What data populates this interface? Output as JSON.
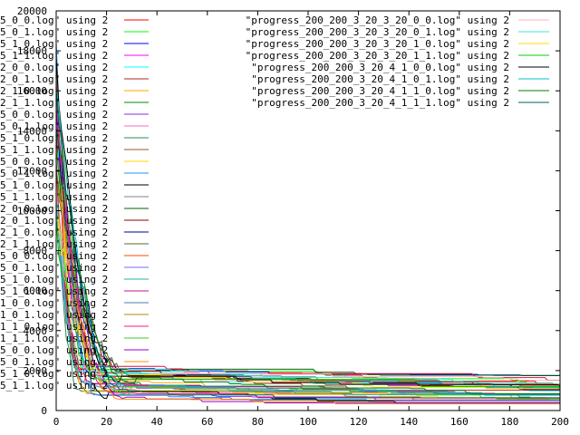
{
  "chart_data": {
    "type": "line",
    "title": "",
    "xlabel": "",
    "ylabel": "",
    "xlim": [
      0,
      200
    ],
    "ylim": [
      0,
      20000
    ],
    "grid": false,
    "x_ticks": [
      "0",
      "20",
      "40",
      "60",
      "80",
      "100",
      "120",
      "140",
      "160",
      "180",
      "200"
    ],
    "y_ticks": [
      "0",
      "2000",
      "4000",
      "6000",
      "8000",
      "10000",
      "12000",
      "14000",
      "16000",
      "18000",
      "20000"
    ],
    "legend_left": {
      "placement": "left, partially cut off",
      "entries": [
        {
          "label": "5_0_0.log\" using 2",
          "color": "#ff0000"
        },
        {
          "label": "5_0_1.log\" using 2",
          "color": "#00ff00"
        },
        {
          "label": "5_1_0.log\" using 2",
          "color": "#0000ff"
        },
        {
          "label": "5_1_1.log\" using 2",
          "color": "#ff00ff"
        },
        {
          "label": "2_0_0.log\" using 2",
          "color": "#00ffff"
        },
        {
          "label": "2_0_1.log\" using 2",
          "color": "#a52a2a"
        },
        {
          "label": "2_1_0.log\" using 2",
          "color": "#ffa500"
        },
        {
          "label": "2_1_1.log\" using 2",
          "color": "#008b00"
        },
        {
          "label": "5_0_0.log\" using 2",
          "color": "#8a2be2"
        },
        {
          "label": "5_0_1.log\" using 2",
          "color": "#ff69b4"
        },
        {
          "label": "5_1_0.log\" using 2",
          "color": "#2e8b57"
        },
        {
          "label": "5_1_1.log\" using 2",
          "color": "#a0522d"
        },
        {
          "label": "5_0_0.log\" using 2",
          "color": "#ffd700"
        },
        {
          "label": "5_0_1.log\" using 2",
          "color": "#1e90ff"
        },
        {
          "label": "5_1_0.log\" using 2",
          "color": "#000000"
        },
        {
          "label": "5_1_1.log\" using 2",
          "color": "#808080"
        },
        {
          "label": "2_0_0.log\" using 2",
          "color": "#006400"
        },
        {
          "label": "2_0_1.log\" using 2",
          "color": "#8b0000"
        },
        {
          "label": "2_1_0.log\" using 2",
          "color": "#00008b"
        },
        {
          "label": "2_1_1.log\" using 2",
          "color": "#556b2f"
        },
        {
          "label": "5_0_0.log\" using 2",
          "color": "#ff4500"
        },
        {
          "label": "5_0_1.log\" using 2",
          "color": "#7b68ee"
        },
        {
          "label": "5_1_0.log\" using 2",
          "color": "#20b2aa"
        },
        {
          "label": "5_1_1.log\" using 2",
          "color": "#c71585"
        },
        {
          "label": "1_0_0.log\" using 2",
          "color": "#4682b4"
        },
        {
          "label": "1_0_1.log\" using 2",
          "color": "#b8860b"
        },
        {
          "label": "1_1_0.log\" using 2",
          "color": "#ff1493"
        },
        {
          "label": "1_1_1.log\" using 2",
          "color": "#32cd32"
        },
        {
          "label": "5_0_0.log\" using 2",
          "color": "#9400d3"
        },
        {
          "label": "5_0_1.log\" using 2",
          "color": "#ff8c00"
        },
        {
          "label": "5_1_0.log\" using 2",
          "color": "#00ced1"
        },
        {
          "label": "5_1_1.log\" using 2",
          "color": "#dc143c"
        }
      ]
    },
    "legend_right": {
      "placement": "top-right",
      "entries": [
        {
          "label": "\"progress_200_200_3_20_3_20_0_0.log\" using 2",
          "color": "#ffb6c1"
        },
        {
          "label": "\"progress_200_200_3_20_3_20_0_1.log\" using 2",
          "color": "#40e0d0"
        },
        {
          "label": "\"progress_200_200_3_20_3_20_1_0.log\" using 2",
          "color": "#ffd700"
        },
        {
          "label": "\"progress_200_200_3_20_3_20_1_1.log\" using 2",
          "color": "#00cc00"
        },
        {
          "label": "\"progress_200_200_3_20_4_1_0_0.log\" using 2",
          "color": "#000000"
        },
        {
          "label": "\"progress_200_200_3_20_4_1_0_1.log\" using 2",
          "color": "#00c0c0"
        },
        {
          "label": "\"progress_200_200_3_20_4_1_1_0.log\" using 2",
          "color": "#008000"
        },
        {
          "label": "\"progress_200_200_3_20_4_1_1_1.log\" using 2",
          "color": "#006060"
        }
      ]
    },
    "series_pattern": {
      "description_note": "",
      "start_values": [
        19000,
        18000,
        17000,
        16000,
        15000,
        14500,
        14000,
        13000,
        12500,
        12000,
        11500,
        11000
      ],
      "plateau_values": [
        2000,
        1900,
        1800,
        1700,
        1600,
        1500,
        1400,
        1300,
        1200,
        1100,
        1000,
        900,
        800,
        700,
        600
      ],
      "decay_end_x": [
        10,
        12,
        14,
        16,
        18,
        20,
        22,
        25,
        28,
        30
      ]
    }
  }
}
